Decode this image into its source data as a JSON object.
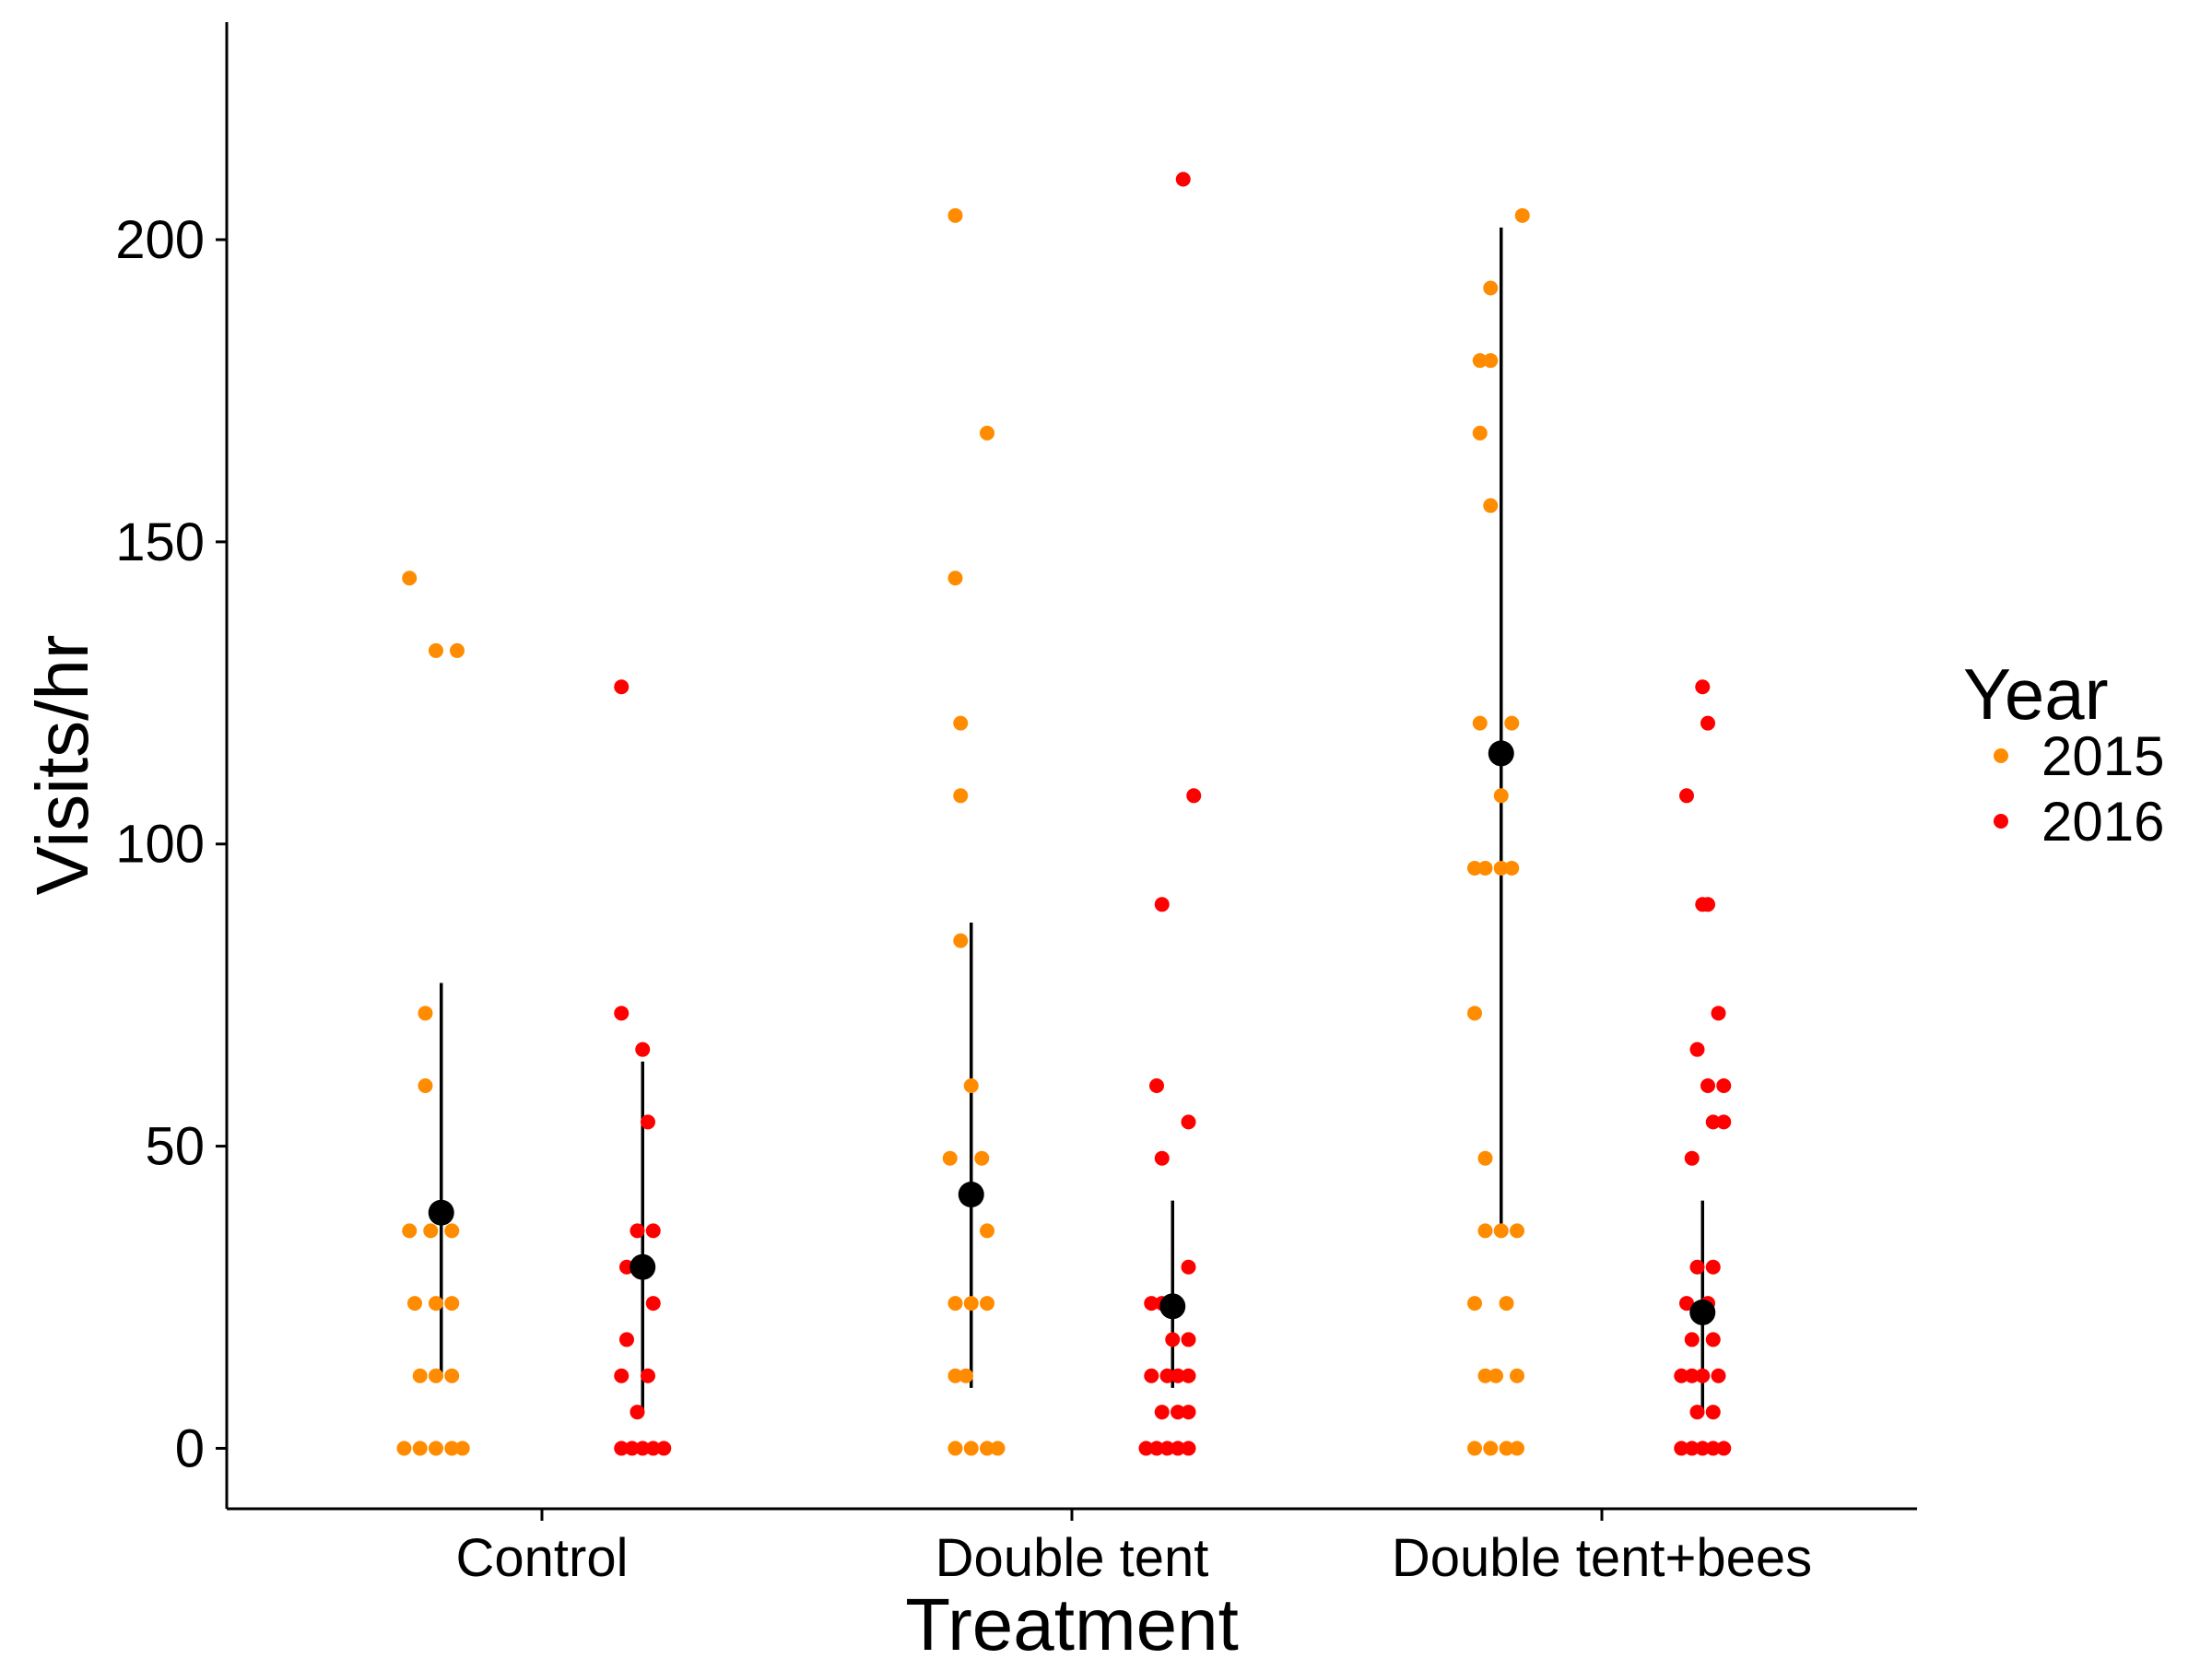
{
  "chart_data": {
    "type": "scatter",
    "title": "",
    "xlabel": "Treatment",
    "ylabel": "Visits/hr",
    "ylim": [
      -10,
      236
    ],
    "yticks": [
      0,
      50,
      100,
      150,
      200
    ],
    "categories": [
      "Control",
      "Double tent",
      "Double tent+bees"
    ],
    "grid": false,
    "legend": {
      "title": "Year",
      "position": "right",
      "entries": [
        "2015",
        "2016"
      ]
    },
    "colors": {
      "2015": "#ff8c00",
      "2016": "#ff0000",
      "summary": "#000000"
    },
    "series": [
      {
        "name": "2015",
        "points": [
          {
            "category": "Control",
            "offset": -0.25,
            "y": 144
          },
          {
            "category": "Control",
            "offset": -0.2,
            "y": 132
          },
          {
            "category": "Control",
            "offset": -0.16,
            "y": 132
          },
          {
            "category": "Control",
            "offset": -0.22,
            "y": 72
          },
          {
            "category": "Control",
            "offset": -0.22,
            "y": 60
          },
          {
            "category": "Control",
            "offset": -0.25,
            "y": 36
          },
          {
            "category": "Control",
            "offset": -0.21,
            "y": 36
          },
          {
            "category": "Control",
            "offset": -0.17,
            "y": 36
          },
          {
            "category": "Control",
            "offset": -0.24,
            "y": 24
          },
          {
            "category": "Control",
            "offset": -0.2,
            "y": 24
          },
          {
            "category": "Control",
            "offset": -0.17,
            "y": 24
          },
          {
            "category": "Control",
            "offset": -0.23,
            "y": 12
          },
          {
            "category": "Control",
            "offset": -0.2,
            "y": 12
          },
          {
            "category": "Control",
            "offset": -0.17,
            "y": 12
          },
          {
            "category": "Control",
            "offset": -0.26,
            "y": 0
          },
          {
            "category": "Control",
            "offset": -0.23,
            "y": 0
          },
          {
            "category": "Control",
            "offset": -0.2,
            "y": 0
          },
          {
            "category": "Control",
            "offset": -0.17,
            "y": 0
          },
          {
            "category": "Control",
            "offset": -0.15,
            "y": 0
          },
          {
            "category": "Double tent",
            "offset": -0.22,
            "y": 204
          },
          {
            "category": "Double tent",
            "offset": -0.16,
            "y": 168
          },
          {
            "category": "Double tent",
            "offset": -0.22,
            "y": 144
          },
          {
            "category": "Double tent",
            "offset": -0.21,
            "y": 120
          },
          {
            "category": "Double tent",
            "offset": -0.21,
            "y": 108
          },
          {
            "category": "Double tent",
            "offset": -0.21,
            "y": 84
          },
          {
            "category": "Double tent",
            "offset": -0.19,
            "y": 60
          },
          {
            "category": "Double tent",
            "offset": -0.23,
            "y": 48
          },
          {
            "category": "Double tent",
            "offset": -0.17,
            "y": 48
          },
          {
            "category": "Double tent",
            "offset": -0.16,
            "y": 36
          },
          {
            "category": "Double tent",
            "offset": -0.22,
            "y": 24
          },
          {
            "category": "Double tent",
            "offset": -0.19,
            "y": 24
          },
          {
            "category": "Double tent",
            "offset": -0.16,
            "y": 24
          },
          {
            "category": "Double tent",
            "offset": -0.22,
            "y": 12
          },
          {
            "category": "Double tent",
            "offset": -0.2,
            "y": 12
          },
          {
            "category": "Double tent",
            "offset": -0.22,
            "y": 0
          },
          {
            "category": "Double tent",
            "offset": -0.19,
            "y": 0
          },
          {
            "category": "Double tent",
            "offset": -0.16,
            "y": 0
          },
          {
            "category": "Double tent",
            "offset": -0.14,
            "y": 0
          },
          {
            "category": "Double tent+bees",
            "offset": -0.15,
            "y": 204
          },
          {
            "category": "Double tent+bees",
            "offset": -0.21,
            "y": 192
          },
          {
            "category": "Double tent+bees",
            "offset": -0.23,
            "y": 180
          },
          {
            "category": "Double tent+bees",
            "offset": -0.21,
            "y": 180
          },
          {
            "category": "Double tent+bees",
            "offset": -0.23,
            "y": 168
          },
          {
            "category": "Double tent+bees",
            "offset": -0.21,
            "y": 156
          },
          {
            "category": "Double tent+bees",
            "offset": -0.23,
            "y": 120
          },
          {
            "category": "Double tent+bees",
            "offset": -0.17,
            "y": 120
          },
          {
            "category": "Double tent+bees",
            "offset": -0.19,
            "y": 108
          },
          {
            "category": "Double tent+bees",
            "offset": -0.24,
            "y": 96
          },
          {
            "category": "Double tent+bees",
            "offset": -0.22,
            "y": 96
          },
          {
            "category": "Double tent+bees",
            "offset": -0.19,
            "y": 96
          },
          {
            "category": "Double tent+bees",
            "offset": -0.17,
            "y": 96
          },
          {
            "category": "Double tent+bees",
            "offset": -0.24,
            "y": 72
          },
          {
            "category": "Double tent+bees",
            "offset": -0.22,
            "y": 48
          },
          {
            "category": "Double tent+bees",
            "offset": -0.22,
            "y": 36
          },
          {
            "category": "Double tent+bees",
            "offset": -0.19,
            "y": 36
          },
          {
            "category": "Double tent+bees",
            "offset": -0.16,
            "y": 36
          },
          {
            "category": "Double tent+bees",
            "offset": -0.24,
            "y": 24
          },
          {
            "category": "Double tent+bees",
            "offset": -0.18,
            "y": 24
          },
          {
            "category": "Double tent+bees",
            "offset": -0.22,
            "y": 12
          },
          {
            "category": "Double tent+bees",
            "offset": -0.2,
            "y": 12
          },
          {
            "category": "Double tent+bees",
            "offset": -0.16,
            "y": 12
          },
          {
            "category": "Double tent+bees",
            "offset": -0.24,
            "y": 0
          },
          {
            "category": "Double tent+bees",
            "offset": -0.21,
            "y": 0
          },
          {
            "category": "Double tent+bees",
            "offset": -0.18,
            "y": 0
          },
          {
            "category": "Double tent+bees",
            "offset": -0.16,
            "y": 0
          }
        ]
      },
      {
        "name": "2016",
        "points": [
          {
            "category": "Control",
            "offset": 0.15,
            "y": 126
          },
          {
            "category": "Control",
            "offset": 0.15,
            "y": 72
          },
          {
            "category": "Control",
            "offset": 0.19,
            "y": 66
          },
          {
            "category": "Control",
            "offset": 0.2,
            "y": 54
          },
          {
            "category": "Control",
            "offset": 0.18,
            "y": 36
          },
          {
            "category": "Control",
            "offset": 0.21,
            "y": 36
          },
          {
            "category": "Control",
            "offset": 0.16,
            "y": 30
          },
          {
            "category": "Control",
            "offset": 0.21,
            "y": 24
          },
          {
            "category": "Control",
            "offset": 0.16,
            "y": 18
          },
          {
            "category": "Control",
            "offset": 0.15,
            "y": 12
          },
          {
            "category": "Control",
            "offset": 0.2,
            "y": 12
          },
          {
            "category": "Control",
            "offset": 0.18,
            "y": 6
          },
          {
            "category": "Control",
            "offset": 0.15,
            "y": 0
          },
          {
            "category": "Control",
            "offset": 0.17,
            "y": 0
          },
          {
            "category": "Control",
            "offset": 0.19,
            "y": 0
          },
          {
            "category": "Control",
            "offset": 0.21,
            "y": 0
          },
          {
            "category": "Control",
            "offset": 0.23,
            "y": 0
          },
          {
            "category": "Double tent",
            "offset": 0.21,
            "y": 210
          },
          {
            "category": "Double tent",
            "offset": 0.23,
            "y": 108
          },
          {
            "category": "Double tent",
            "offset": 0.17,
            "y": 90
          },
          {
            "category": "Double tent",
            "offset": 0.16,
            "y": 60
          },
          {
            "category": "Double tent",
            "offset": 0.22,
            "y": 54
          },
          {
            "category": "Double tent",
            "offset": 0.17,
            "y": 48
          },
          {
            "category": "Double tent",
            "offset": 0.22,
            "y": 30
          },
          {
            "category": "Double tent",
            "offset": 0.15,
            "y": 24
          },
          {
            "category": "Double tent",
            "offset": 0.17,
            "y": 24
          },
          {
            "category": "Double tent",
            "offset": 0.19,
            "y": 18
          },
          {
            "category": "Double tent",
            "offset": 0.22,
            "y": 18
          },
          {
            "category": "Double tent",
            "offset": 0.15,
            "y": 12
          },
          {
            "category": "Double tent",
            "offset": 0.18,
            "y": 12
          },
          {
            "category": "Double tent",
            "offset": 0.2,
            "y": 12
          },
          {
            "category": "Double tent",
            "offset": 0.22,
            "y": 12
          },
          {
            "category": "Double tent",
            "offset": 0.17,
            "y": 6
          },
          {
            "category": "Double tent",
            "offset": 0.2,
            "y": 6
          },
          {
            "category": "Double tent",
            "offset": 0.22,
            "y": 6
          },
          {
            "category": "Double tent",
            "offset": 0.14,
            "y": 0
          },
          {
            "category": "Double tent",
            "offset": 0.16,
            "y": 0
          },
          {
            "category": "Double tent",
            "offset": 0.18,
            "y": 0
          },
          {
            "category": "Double tent",
            "offset": 0.2,
            "y": 0
          },
          {
            "category": "Double tent",
            "offset": 0.22,
            "y": 0
          },
          {
            "category": "Double tent+bees",
            "offset": 0.19,
            "y": 126
          },
          {
            "category": "Double tent+bees",
            "offset": 0.2,
            "y": 120
          },
          {
            "category": "Double tent+bees",
            "offset": 0.16,
            "y": 108
          },
          {
            "category": "Double tent+bees",
            "offset": 0.19,
            "y": 90
          },
          {
            "category": "Double tent+bees",
            "offset": 0.2,
            "y": 90
          },
          {
            "category": "Double tent+bees",
            "offset": 0.22,
            "y": 72
          },
          {
            "category": "Double tent+bees",
            "offset": 0.18,
            "y": 66
          },
          {
            "category": "Double tent+bees",
            "offset": 0.2,
            "y": 60
          },
          {
            "category": "Double tent+bees",
            "offset": 0.23,
            "y": 60
          },
          {
            "category": "Double tent+bees",
            "offset": 0.21,
            "y": 54
          },
          {
            "category": "Double tent+bees",
            "offset": 0.23,
            "y": 54
          },
          {
            "category": "Double tent+bees",
            "offset": 0.17,
            "y": 48
          },
          {
            "category": "Double tent+bees",
            "offset": 0.18,
            "y": 30
          },
          {
            "category": "Double tent+bees",
            "offset": 0.21,
            "y": 30
          },
          {
            "category": "Double tent+bees",
            "offset": 0.16,
            "y": 24
          },
          {
            "category": "Double tent+bees",
            "offset": 0.2,
            "y": 24
          },
          {
            "category": "Double tent+bees",
            "offset": 0.17,
            "y": 18
          },
          {
            "category": "Double tent+bees",
            "offset": 0.21,
            "y": 18
          },
          {
            "category": "Double tent+bees",
            "offset": 0.15,
            "y": 12
          },
          {
            "category": "Double tent+bees",
            "offset": 0.17,
            "y": 12
          },
          {
            "category": "Double tent+bees",
            "offset": 0.19,
            "y": 12
          },
          {
            "category": "Double tent+bees",
            "offset": 0.22,
            "y": 12
          },
          {
            "category": "Double tent+bees",
            "offset": 0.18,
            "y": 6
          },
          {
            "category": "Double tent+bees",
            "offset": 0.21,
            "y": 6
          },
          {
            "category": "Double tent+bees",
            "offset": 0.15,
            "y": 0
          },
          {
            "category": "Double tent+bees",
            "offset": 0.17,
            "y": 0
          },
          {
            "category": "Double tent+bees",
            "offset": 0.19,
            "y": 0
          },
          {
            "category": "Double tent+bees",
            "offset": 0.21,
            "y": 0
          },
          {
            "category": "Double tent+bees",
            "offset": 0.23,
            "y": 0
          }
        ]
      }
    ],
    "summary": [
      {
        "category": "Control",
        "year": "2015",
        "offset": -0.19,
        "mean": 39,
        "lower": 12,
        "upper": 77
      },
      {
        "category": "Control",
        "year": "2016",
        "offset": 0.19,
        "mean": 30,
        "lower": 6,
        "upper": 64
      },
      {
        "category": "Double tent",
        "year": "2015",
        "offset": -0.19,
        "mean": 42,
        "lower": 10,
        "upper": 87
      },
      {
        "category": "Double tent",
        "year": "2016",
        "offset": 0.19,
        "mean": 23.5,
        "lower": 10,
        "upper": 41
      },
      {
        "category": "Double tent+bees",
        "year": "2015",
        "offset": -0.19,
        "mean": 115,
        "lower": 36,
        "upper": 202
      },
      {
        "category": "Double tent+bees",
        "year": "2016",
        "offset": 0.19,
        "mean": 22.5,
        "lower": 6,
        "upper": 41
      }
    ]
  }
}
